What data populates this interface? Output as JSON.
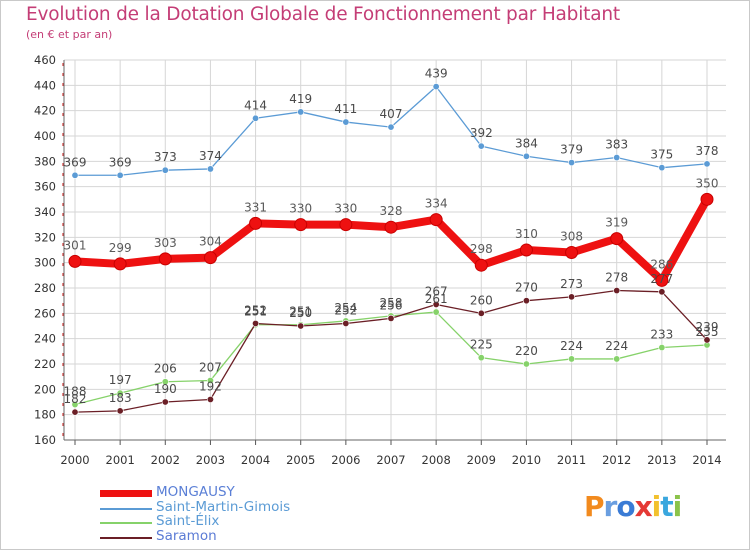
{
  "title": "Evolution de la Dotation Globale de Fonctionnement par Habitant",
  "subtitle": "(en € et par an)",
  "brand": {
    "text": "Proxiti",
    "colors": [
      "#f28a1e",
      "#6a9ee0",
      "#3a7bd5",
      "#e53935",
      "#f2c12e",
      "#3aa7de",
      "#8bc34a"
    ]
  },
  "chart_data": {
    "type": "line",
    "title": "Evolution de la Dotation Globale de Fonctionnement par Habitant",
    "subtitle": "(en € et par an)",
    "xlabel": "",
    "ylabel": "",
    "ylim": [
      160,
      460
    ],
    "yticks": [
      160,
      180,
      200,
      220,
      240,
      260,
      280,
      300,
      320,
      340,
      360,
      380,
      400,
      420,
      440,
      460
    ],
    "x": [
      "2000",
      "2001",
      "2002",
      "2003",
      "2004",
      "2005",
      "2006",
      "2007",
      "2008",
      "2009",
      "2010",
      "2011",
      "2012",
      "2013",
      "2014"
    ],
    "grid": true,
    "series": [
      {
        "name": "MONGAUSY",
        "color": "#ee1111",
        "labelColor": "#5a5a5a",
        "width": 8,
        "marker": 6,
        "values": [
          301,
          299,
          303,
          304,
          331,
          330,
          330,
          328,
          334,
          298,
          310,
          308,
          319,
          286,
          350
        ],
        "labels": [
          "301",
          "299",
          "303",
          "304",
          "331",
          "330",
          "330",
          "328",
          "334",
          "298",
          "310",
          "308",
          "319",
          "286",
          "350"
        ]
      },
      {
        "name": "Saint-Martin-Gimois",
        "color": "#5b9bd5",
        "labelColor": "#4a4a4a",
        "width": 1.3,
        "marker": 3.2,
        "values": [
          369,
          369,
          373,
          374,
          414,
          419,
          411,
          407,
          439,
          392,
          384,
          379,
          383,
          375,
          378
        ],
        "labels": [
          "369",
          "369",
          "373",
          "374",
          "414",
          "419",
          "411",
          "407",
          "439",
          "392",
          "384",
          "379",
          "383",
          "375",
          "378"
        ]
      },
      {
        "name": "Saint-Élix",
        "color": "#86d26a",
        "labelColor": "#4a4a4a",
        "width": 1.3,
        "marker": 3.2,
        "values": [
          188,
          197,
          206,
          207,
          251,
          251,
          254,
          258,
          261,
          225,
          220,
          224,
          224,
          233,
          235
        ],
        "labels": [
          "188",
          "197",
          "206",
          "207",
          "251",
          "251",
          "254",
          "258",
          "261",
          "225",
          "220",
          "224",
          "224",
          "233",
          "235"
        ]
      },
      {
        "name": "Saramon",
        "color": "#6b1f26",
        "labelColor": "#4a4a4a",
        "width": 1.3,
        "marker": 3.2,
        "values": [
          182,
          183,
          190,
          192,
          252,
          250,
          252,
          256,
          267,
          260,
          270,
          273,
          278,
          277,
          239
        ],
        "labels": [
          "182",
          "183",
          "190",
          "192",
          "252",
          "250",
          "252",
          "256",
          "267",
          "260",
          "270",
          "273",
          "278",
          "277",
          "239"
        ]
      }
    ]
  }
}
